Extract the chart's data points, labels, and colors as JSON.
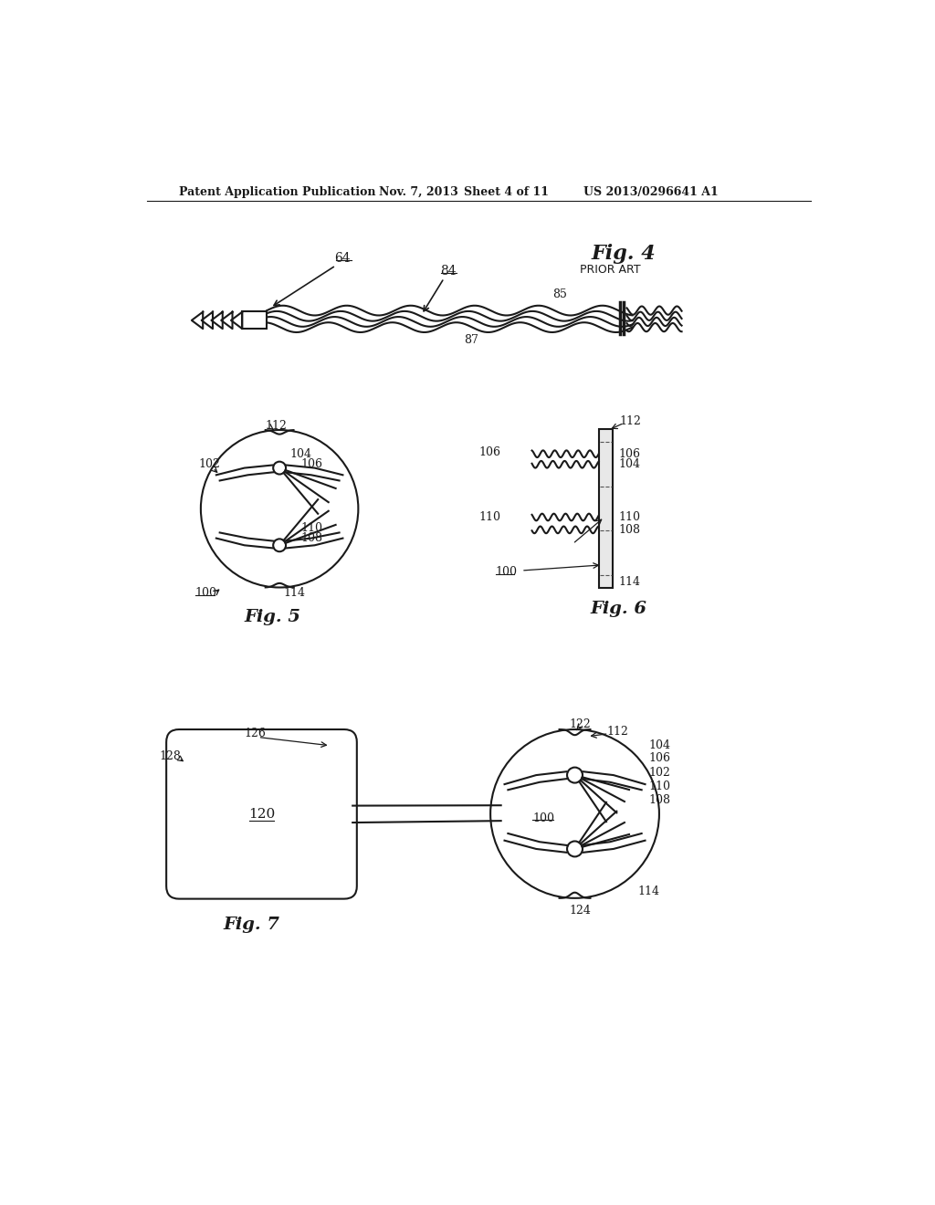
{
  "bg_color": "#ffffff",
  "header_text": "Patent Application Publication",
  "header_date": "Nov. 7, 2013",
  "header_sheet": "Sheet 4 of 11",
  "header_patent": "US 2013/0296641 A1",
  "fig4_label": "Fig. 4",
  "fig4_prior_art": "PRIOR ART",
  "fig5_label": "Fig. 5",
  "fig6_label": "Fig. 6",
  "fig7_label": "Fig. 7",
  "line_color": "#1a1a1a",
  "text_color": "#1a1a1a"
}
